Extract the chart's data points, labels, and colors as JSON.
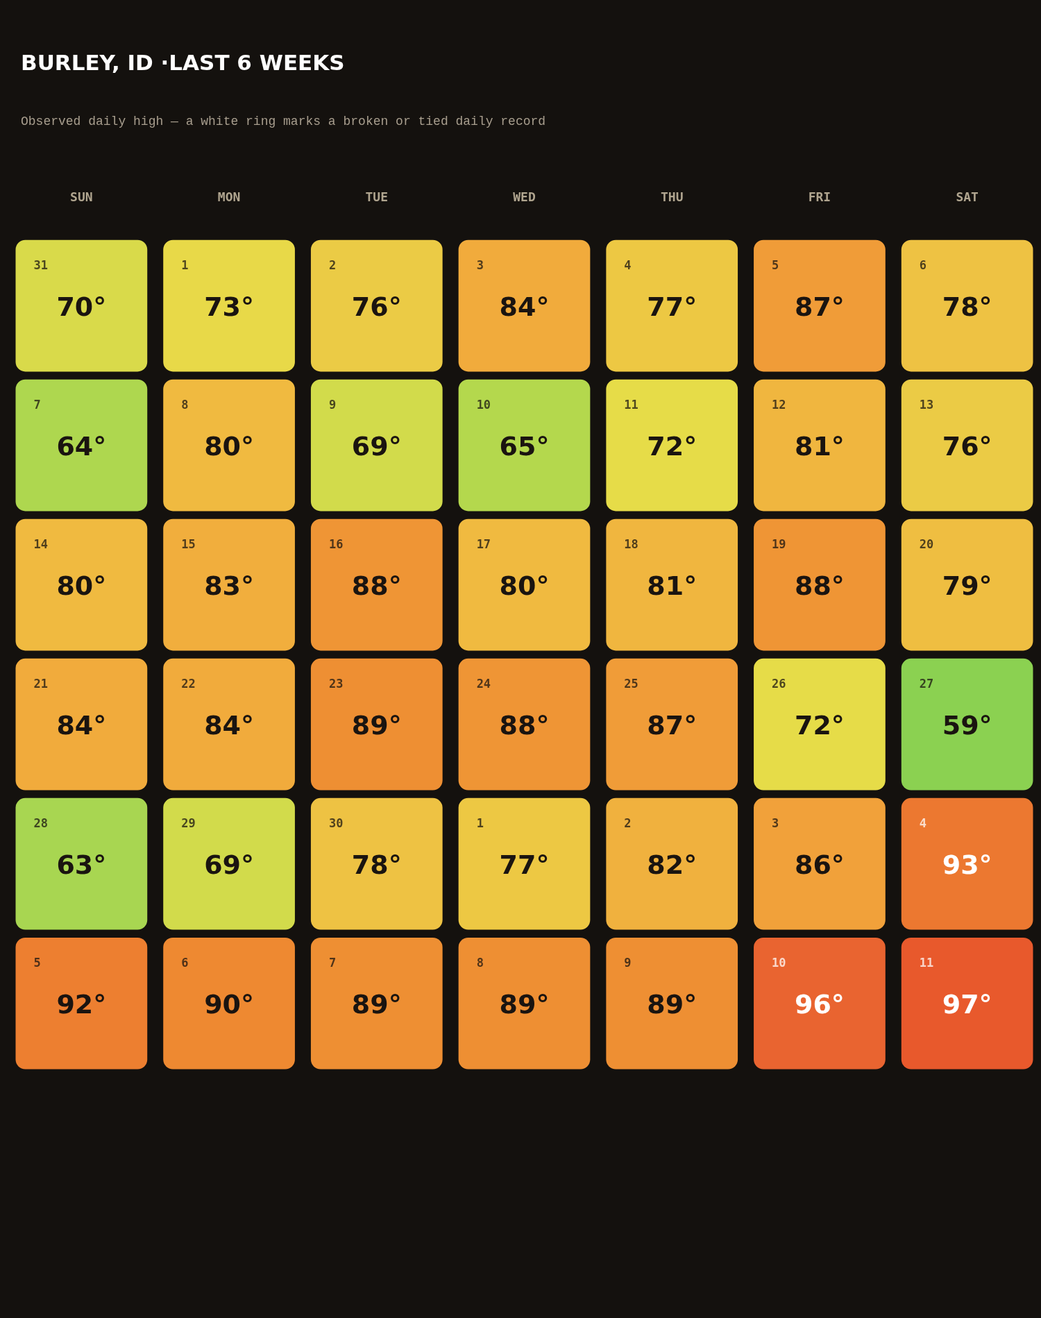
{
  "chart_data": {
    "type": "heatmap",
    "title": "BURLEY, ID ·LAST 6 WEEKS",
    "subtitle": "Observed daily high — a white ring marks a broken or tied daily record",
    "categories": [
      "SUN",
      "MON",
      "TUE",
      "WED",
      "THU",
      "FRI",
      "SAT"
    ],
    "y_categories": [
      null,
      null,
      null,
      null,
      null,
      null
    ],
    "cells": [
      [
        70,
        73,
        76,
        84,
        77,
        87,
        78
      ],
      [
        64,
        80,
        69,
        65,
        72,
        81,
        76
      ],
      [
        80,
        83,
        88,
        80,
        81,
        88,
        79
      ],
      [
        84,
        84,
        89,
        88,
        87,
        72,
        59
      ],
      [
        63,
        69,
        78,
        77,
        82,
        86,
        93
      ],
      [
        92,
        90,
        89,
        89,
        89,
        96,
        97
      ]
    ],
    "cell_labels": [
      [
        "70°",
        "73°",
        "76°",
        "84°",
        "77°",
        "87°",
        "78°"
      ],
      [
        "64°",
        "80°",
        "69°",
        "65°",
        "72°",
        "81°",
        "76°"
      ],
      [
        "80°",
        "83°",
        "88°",
        "80°",
        "81°",
        "88°",
        "79°"
      ],
      [
        "84°",
        "84°",
        "89°",
        "88°",
        "87°",
        "72°",
        "59°"
      ],
      [
        "63°",
        "69°",
        "78°",
        "77°",
        "82°",
        "86°",
        "93°"
      ],
      [
        "92°",
        "90°",
        "89°",
        "89°",
        "89°",
        "96°",
        "97°"
      ]
    ],
    "annotations": [
      "31",
      "1",
      "2",
      "3",
      "4",
      "5",
      "6",
      "7",
      "8",
      "9",
      "10",
      "11",
      "12",
      "13",
      "14",
      "15",
      "16",
      "17",
      "18",
      "19",
      "20",
      "21",
      "22",
      "23",
      "24",
      "25",
      "26",
      "27",
      "28",
      "29",
      "30",
      "1",
      "2",
      "3",
      "4",
      "5",
      "6",
      "7",
      "8",
      "9",
      "10",
      "11"
    ],
    "colors": [
      [
        "#d9da4a",
        "#e8d948",
        "#ebcb45",
        "#f1ab3c",
        "#edc843",
        "#f09c38",
        "#eec243"
      ],
      [
        "#aed74f",
        "#f0ba40",
        "#d2db4b",
        "#b4d84d",
        "#e6dc48",
        "#f0b63f",
        "#ebcb45"
      ],
      [
        "#f0ba40",
        "#f1ae3d",
        "#ef9535",
        "#f0ba40",
        "#f0b63f",
        "#ef9535",
        "#efbe41"
      ],
      [
        "#f1ab3c",
        "#f1ab3c",
        "#ee8f33",
        "#ef9535",
        "#f09c38",
        "#e6dc48",
        "#8bd151"
      ],
      [
        "#a8d651",
        "#d2db4b",
        "#eec243",
        "#edc843",
        "#f0b13e",
        "#f1a13a",
        "#ec7830"
      ],
      [
        "#ed7f30",
        "#ee8931",
        "#ee8f33",
        "#ee8f33",
        "#ee8f33",
        "#e96430",
        "#e8592c"
      ]
    ]
  }
}
